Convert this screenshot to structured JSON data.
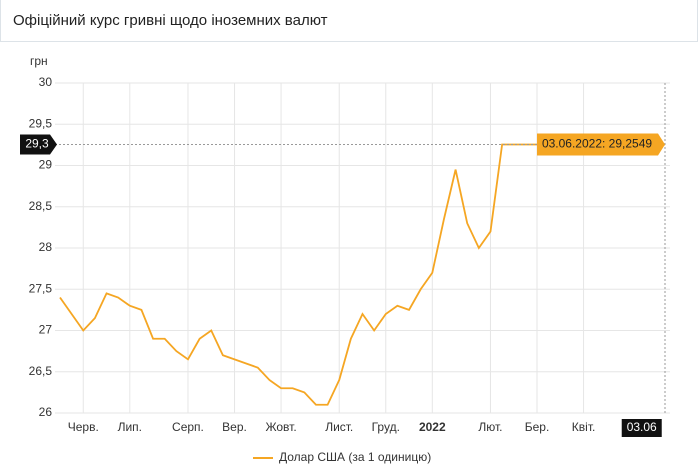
{
  "chart_data": {
    "type": "line",
    "title": "Офіційний курс гривні щодо іноземних валют",
    "y_label": "грн",
    "categories": [
      null,
      null,
      "Черв.",
      null,
      null,
      null,
      "Лип.",
      null,
      null,
      null,
      null,
      "Серп.",
      null,
      null,
      null,
      "Вер.",
      null,
      null,
      null,
      "Жовт.",
      null,
      null,
      null,
      null,
      "Лист.",
      null,
      null,
      null,
      "Груд.",
      null,
      null,
      null,
      "2022",
      null,
      null,
      null,
      null,
      "Лют.",
      null,
      null,
      null,
      "Бер.",
      null,
      null,
      null,
      "Квіт.",
      null,
      null,
      null,
      null,
      "03.06",
      null,
      null
    ],
    "series": [
      {
        "name": "Долар США (за 1 одиницю)",
        "color": "#f5a623",
        "values": [
          27.4,
          27.2,
          27.0,
          27.15,
          27.45,
          27.4,
          27.3,
          27.25,
          26.9,
          26.9,
          26.75,
          26.65,
          26.9,
          27.0,
          26.7,
          26.65,
          26.6,
          26.55,
          26.4,
          26.3,
          26.3,
          26.25,
          26.1,
          26.1,
          26.4,
          26.9,
          27.2,
          27.0,
          27.2,
          27.3,
          27.25,
          27.5,
          27.7,
          28.35,
          28.95,
          28.3,
          28.0,
          28.2,
          29.2549,
          29.2549,
          29.2549,
          29.2549,
          29.2549,
          29.2549,
          29.2549,
          29.2549,
          29.2549,
          29.2549,
          29.2549,
          29.2549,
          29.2549,
          29.2549,
          29.2549
        ]
      }
    ],
    "ylim": [
      26,
      30
    ],
    "yticks": [
      26,
      {
        "value": 26.5,
        "label": "26,5"
      },
      27,
      {
        "value": 27.5,
        "label": "27,5"
      },
      28,
      {
        "value": 28.5,
        "label": "28,5"
      },
      29,
      {
        "value": 29.5,
        "label": "29,5"
      },
      30
    ],
    "grid": true,
    "crosshair_label": "29,3",
    "tooltip": "03.06.2022: 29,2549"
  }
}
